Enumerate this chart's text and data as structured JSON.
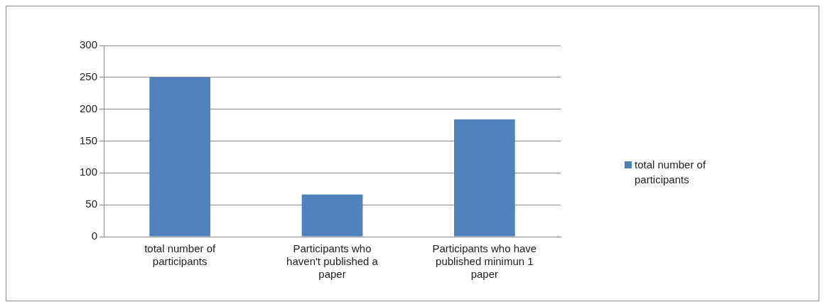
{
  "chart_data": {
    "type": "bar",
    "categories": [
      "total number of participants",
      "Participants who haven't published a paper",
      "Participants who have published minimun 1 paper"
    ],
    "series": [
      {
        "name": "total number of participants",
        "color": "#4f81bd",
        "values": [
          250,
          66,
          184
        ]
      }
    ],
    "ylim": [
      0,
      300
    ],
    "yticks": [
      0,
      50,
      100,
      150,
      200,
      250,
      300
    ],
    "grid": "y",
    "legend": "right"
  }
}
